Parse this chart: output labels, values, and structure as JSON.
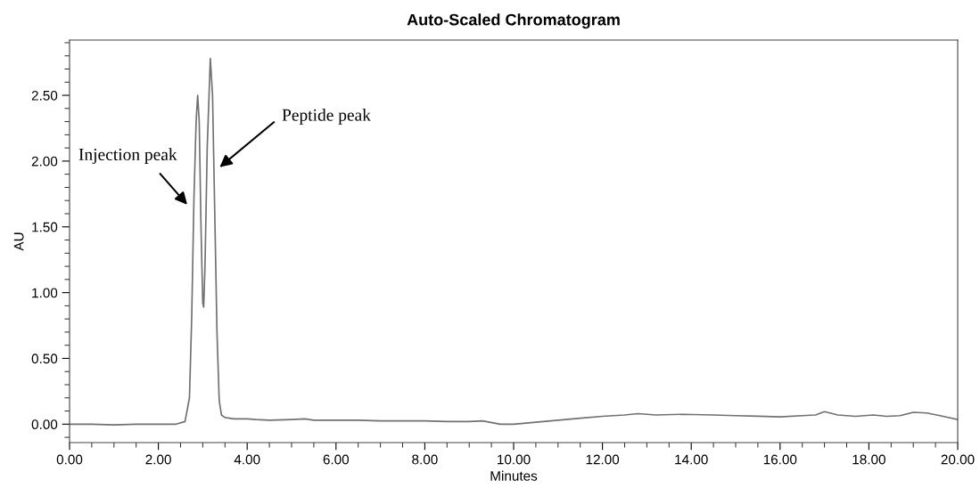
{
  "chart_data": {
    "type": "line",
    "title": "Auto-Scaled Chromatogram",
    "xlabel": "Minutes",
    "ylabel": "AU",
    "x": [
      0.0,
      0.5,
      1.0,
      1.5,
      2.0,
      2.4,
      2.6,
      2.7,
      2.75,
      2.8,
      2.85,
      2.885,
      2.92,
      2.96,
      3.0,
      3.02,
      3.05,
      3.1,
      3.17,
      3.22,
      3.27,
      3.32,
      3.37,
      3.42,
      3.5,
      3.7,
      4.0,
      4.2,
      4.5,
      5.0,
      5.3,
      5.5,
      6.0,
      6.5,
      7.0,
      7.5,
      8.0,
      8.5,
      9.0,
      9.3,
      9.7,
      10.0,
      10.5,
      11.0,
      11.5,
      12.0,
      12.5,
      12.8,
      13.2,
      13.8,
      14.5,
      15.0,
      15.5,
      16.0,
      16.5,
      16.8,
      17.0,
      17.3,
      17.7,
      18.1,
      18.4,
      18.7,
      19.0,
      19.3,
      19.6,
      20.0
    ],
    "values": [
      0.0,
      0.0,
      -0.005,
      0.0,
      0.0,
      0.0,
      0.02,
      0.2,
      0.8,
      1.7,
      2.3,
      2.5,
      2.3,
      1.5,
      0.92,
      0.89,
      1.2,
      2.1,
      2.78,
      2.5,
      1.6,
      0.7,
      0.18,
      0.07,
      0.05,
      0.04,
      0.04,
      0.035,
      0.03,
      0.035,
      0.04,
      0.03,
      0.03,
      0.03,
      0.025,
      0.025,
      0.025,
      0.02,
      0.02,
      0.025,
      0.0,
      0.0,
      0.015,
      0.03,
      0.045,
      0.06,
      0.07,
      0.08,
      0.07,
      0.075,
      0.07,
      0.065,
      0.06,
      0.055,
      0.065,
      0.07,
      0.095,
      0.07,
      0.06,
      0.07,
      0.06,
      0.065,
      0.09,
      0.085,
      0.065,
      0.035
    ],
    "color": "#707070",
    "grid": false,
    "legend": false,
    "marker": "none",
    "line_style": "solid",
    "xlim": [
      0,
      20
    ],
    "ylim": [
      -0.14,
      2.92
    ],
    "xticks": [
      {
        "value": 0,
        "label": "0.00"
      },
      {
        "value": 2,
        "label": "2.00"
      },
      {
        "value": 4,
        "label": "4.00"
      },
      {
        "value": 6,
        "label": "6.00"
      },
      {
        "value": 8,
        "label": "8.00"
      },
      {
        "value": 10,
        "label": "10.00"
      },
      {
        "value": 12,
        "label": "12.00"
      },
      {
        "value": 14,
        "label": "14.00"
      },
      {
        "value": 16,
        "label": "16.00"
      },
      {
        "value": 18,
        "label": "18.00"
      },
      {
        "value": 20,
        "label": "20.00"
      }
    ],
    "yticks": [
      {
        "value": 0,
        "label": "0.00"
      },
      {
        "value": 0.5,
        "label": "0.50"
      },
      {
        "value": 1,
        "label": "1.00"
      },
      {
        "value": 1.5,
        "label": "1.50"
      },
      {
        "value": 2,
        "label": "2.00"
      },
      {
        "value": 2.5,
        "label": "2.50"
      }
    ],
    "annotations": [
      "Injection peak",
      "Peptide peak"
    ]
  }
}
